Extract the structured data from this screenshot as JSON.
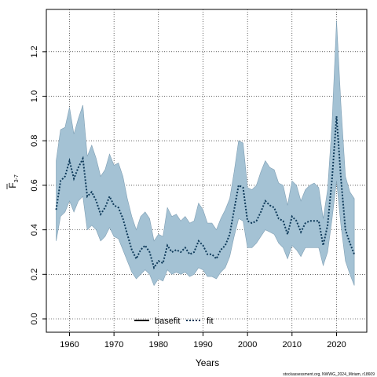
{
  "chart_data": {
    "type": "line",
    "xlabel": "Years",
    "ylabel_main": "F",
    "ylabel_sub": "3-7",
    "xlim": [
      1954.8,
      2026.8
    ],
    "ylim": [
      -0.06,
      1.39
    ],
    "x_ticks": [
      1960,
      1970,
      1980,
      1990,
      2000,
      2010,
      2020
    ],
    "y_ticks": [
      0.0,
      0.2,
      0.4,
      0.6,
      0.8,
      1.0,
      1.2
    ],
    "grid": true,
    "legend_position": "bottom",
    "band_color": "#a4c2d4",
    "band_edge_color": "#7f9fb4",
    "line_color": "#000000",
    "fit_color": "#0e3a5a",
    "legend": [
      {
        "label": "basefit",
        "style": "solid"
      },
      {
        "label": "fit",
        "style": "dotted"
      }
    ],
    "credit": "stockassessment.org, NWWG_2024_Miriam, r18609",
    "series": [
      {
        "x": [
          1957,
          1958,
          1959,
          1960,
          1961,
          1962,
          1963,
          1964,
          1965,
          1966,
          1967,
          1968,
          1969,
          1970,
          1971,
          1972,
          1973,
          1974,
          1975,
          1976,
          1977,
          1978,
          1979,
          1980,
          1981,
          1982,
          1983,
          1984,
          1985,
          1986,
          1987,
          1988,
          1989,
          1990,
          1991,
          1992,
          1993,
          1994,
          1995,
          1996,
          1997,
          1998,
          1999,
          2000,
          2001,
          2002,
          2003,
          2004,
          2005,
          2006,
          2007,
          2008,
          2009,
          2010,
          2011,
          2012,
          2013,
          2014,
          2015,
          2016,
          2017,
          2018,
          2019,
          2020,
          2021,
          2022,
          2023,
          2024
        ],
        "y": [
          0.49,
          0.62,
          0.64,
          0.71,
          0.63,
          0.68,
          0.72,
          0.55,
          0.57,
          0.53,
          0.47,
          0.5,
          0.55,
          0.51,
          0.5,
          0.45,
          0.38,
          0.31,
          0.27,
          0.31,
          0.33,
          0.3,
          0.23,
          0.26,
          0.25,
          0.33,
          0.3,
          0.31,
          0.3,
          0.32,
          0.29,
          0.3,
          0.35,
          0.33,
          0.29,
          0.29,
          0.27,
          0.31,
          0.33,
          0.38,
          0.49,
          0.6,
          0.59,
          0.44,
          0.43,
          0.44,
          0.48,
          0.53,
          0.51,
          0.5,
          0.45,
          0.44,
          0.38,
          0.46,
          0.44,
          0.39,
          0.43,
          0.44,
          0.44,
          0.44,
          0.33,
          0.42,
          0.63,
          0.91,
          0.63,
          0.4,
          0.34,
          0.29
        ],
        "low": [
          0.35,
          0.46,
          0.48,
          0.53,
          0.48,
          0.53,
          0.55,
          0.4,
          0.42,
          0.4,
          0.35,
          0.37,
          0.41,
          0.37,
          0.36,
          0.31,
          0.26,
          0.21,
          0.18,
          0.2,
          0.22,
          0.2,
          0.15,
          0.18,
          0.17,
          0.22,
          0.2,
          0.21,
          0.2,
          0.21,
          0.19,
          0.2,
          0.23,
          0.22,
          0.19,
          0.19,
          0.18,
          0.21,
          0.23,
          0.28,
          0.37,
          0.45,
          0.44,
          0.32,
          0.32,
          0.34,
          0.37,
          0.4,
          0.39,
          0.38,
          0.34,
          0.32,
          0.27,
          0.33,
          0.31,
          0.28,
          0.32,
          0.32,
          0.32,
          0.32,
          0.24,
          0.3,
          0.45,
          0.62,
          0.42,
          0.26,
          0.2,
          0.15
        ],
        "high": [
          0.71,
          0.85,
          0.86,
          0.95,
          0.83,
          0.9,
          0.96,
          0.73,
          0.78,
          0.72,
          0.64,
          0.67,
          0.74,
          0.69,
          0.7,
          0.64,
          0.54,
          0.46,
          0.4,
          0.46,
          0.48,
          0.45,
          0.35,
          0.38,
          0.37,
          0.5,
          0.46,
          0.47,
          0.44,
          0.46,
          0.43,
          0.44,
          0.52,
          0.49,
          0.43,
          0.43,
          0.4,
          0.45,
          0.49,
          0.54,
          0.66,
          0.8,
          0.79,
          0.59,
          0.58,
          0.6,
          0.66,
          0.71,
          0.68,
          0.67,
          0.61,
          0.6,
          0.51,
          0.62,
          0.6,
          0.53,
          0.58,
          0.6,
          0.61,
          0.59,
          0.45,
          0.58,
          0.88,
          1.34,
          0.96,
          0.64,
          0.57,
          0.54
        ]
      }
    ]
  }
}
